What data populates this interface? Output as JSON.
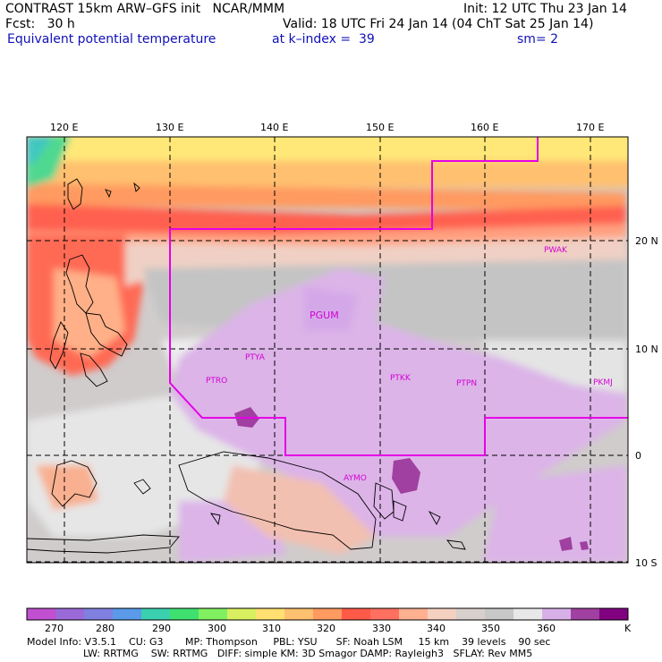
{
  "header": {
    "model_line": "CONTRAST 15km ARW–GFS init   NCAR/MMM",
    "init_line": "Init: 12 UTC Thu 23 Jan 14",
    "fcst_line": "Fcst:   30 h",
    "valid_line": "Valid: 18 UTC Fri 24 Jan 14 (04 ChT Sat 25 Jan 14)",
    "field_name": "Equivalent potential temperature",
    "level": "at k–index =  39",
    "smoothing": "sm= 2"
  },
  "map": {
    "longitude_labels": [
      "120 E",
      "130 E",
      "140 E",
      "150 E",
      "160 E",
      "170 E"
    ],
    "latitude_labels": [
      "20 N",
      "10 N",
      "0",
      "10 S"
    ],
    "stations": [
      {
        "id": "PWAK",
        "label": "PWAK"
      },
      {
        "id": "PGUM",
        "label": "PGUM"
      },
      {
        "id": "PTYA",
        "label": "PTYA"
      },
      {
        "id": "PTRO",
        "label": "PTRO"
      },
      {
        "id": "PTKK",
        "label": "PTKK"
      },
      {
        "id": "PTPN",
        "label": "PTPN"
      },
      {
        "id": "PKMJ",
        "label": "PKMJ"
      },
      {
        "id": "AYMO",
        "label": "AYMO"
      }
    ],
    "domain_outline_color": "#e600e6"
  },
  "colorbar": {
    "labels": [
      "270",
      "280",
      "290",
      "300",
      "310",
      "320",
      "330",
      "340",
      "350",
      "360"
    ],
    "unit": "K",
    "colors": [
      "#c050d0",
      "#9a6ad8",
      "#8080e0",
      "#5a9ae8",
      "#3ad0b0",
      "#40e070",
      "#80f060",
      "#d8f060",
      "#ffe070",
      "#ffc070",
      "#ff9a60",
      "#ff5a48",
      "#ff7060",
      "#ffb090",
      "#f4d0c0",
      "#d8d0cc",
      "#c8c8c8",
      "#e8e8e8",
      "#d8b0e8",
      "#a040a0",
      "#800080"
    ]
  },
  "footer": {
    "line1": "Model Info: V3.5.1    CU: G3       MP: Thompson     PBL: YSU      SF: Noah LSM     15 km    39 levels    90 sec",
    "line2": "                  LW: RRTMG    SW: RRTMG   DIFF: simple KM: 3D Smagor DAMP: Rayleigh3   SFLAY: Rev MM5"
  }
}
